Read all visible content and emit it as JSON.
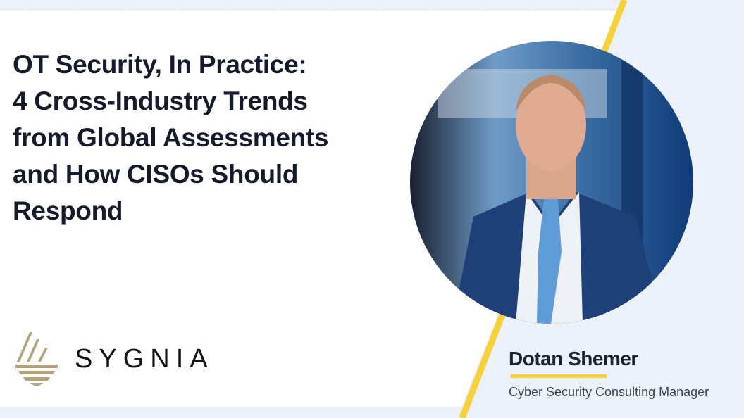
{
  "title_lines": [
    "OT Security, In Practice:",
    "4 Cross-Industry Trends",
    "from Global Assessments",
    "and How CISOs Should",
    "Respond"
  ],
  "logo": {
    "text": "SYGNIA",
    "color": "#b3a47e"
  },
  "speaker": {
    "name": "Dotan Shemer",
    "role": "Cyber Security Consulting Manager"
  },
  "colors": {
    "accent": "#f5d13b",
    "background": "#edf1f9",
    "title": "#151b2b"
  }
}
